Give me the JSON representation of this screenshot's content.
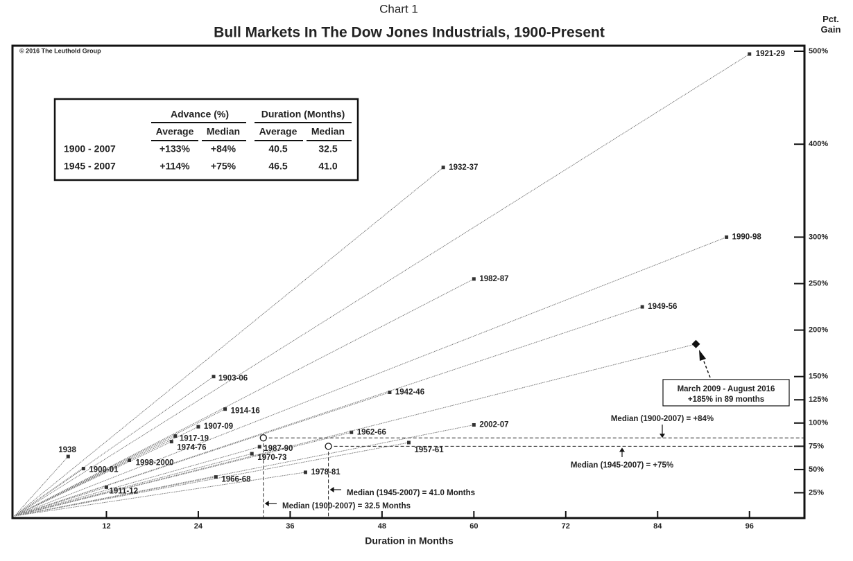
{
  "chart_data": {
    "type": "scatter",
    "subtitle": "Chart 1",
    "title": "Bull Markets In The Dow Jones Industrials, 1900-Present",
    "source": "© 2016 The Leuthold Group",
    "xlabel": "Duration in Months",
    "ylabel": "Pct. Gain",
    "xlim": [
      0,
      103
    ],
    "ylim": [
      0,
      500
    ],
    "xticks": [
      12,
      24,
      36,
      48,
      60,
      72,
      84,
      96
    ],
    "yticks": [
      {
        "value": 25,
        "label": "25%"
      },
      {
        "value": 50,
        "label": "50%"
      },
      {
        "value": 75,
        "label": "75%"
      },
      {
        "value": 100,
        "label": "100%"
      },
      {
        "value": 125,
        "label": "125%"
      },
      {
        "value": 150,
        "label": "150%"
      },
      {
        "value": 200,
        "label": "200%"
      },
      {
        "value": 250,
        "label": "250%"
      },
      {
        "value": 300,
        "label": "300%"
      },
      {
        "value": 400,
        "label": "400%"
      },
      {
        "value": 500,
        "label": "500%"
      }
    ],
    "color": "#333333",
    "labels": [
      "1921-29",
      "1932-37",
      "1990-98",
      "1982-87",
      "1949-56",
      "1903-06",
      "1942-46",
      "1914-16",
      "2002-07",
      "1907-09",
      "1962-66",
      "1917-19",
      "1974-76",
      "1957-61",
      "1987-90",
      "1970-73",
      "1938",
      "1998-2000",
      "1900-01",
      "1978-81",
      "1966-68",
      "1911-12"
    ],
    "x": [
      96,
      56,
      93,
      60,
      82,
      26,
      49,
      27.5,
      60,
      24,
      44,
      21,
      20.5,
      51.5,
      32,
      31,
      7,
      15,
      9,
      38,
      26.3,
      12
    ],
    "values": [
      497,
      375,
      300,
      255,
      225,
      150,
      133,
      115,
      98,
      96,
      90,
      86,
      80,
      79,
      74.5,
      67,
      64,
      60,
      51,
      47,
      42,
      31
    ],
    "current": {
      "x": 89,
      "y": 185,
      "label": "March 2009 - August 2016",
      "note": "+185% in 89 months"
    },
    "medians": [
      {
        "x": 32.5,
        "y": 84,
        "x_label": "Median (1900-2007) = 32.5 Months",
        "y_label": "Median (1900-2007) = +84%"
      },
      {
        "x": 41,
        "y": 75,
        "x_label": "Median (1945-2007) = 41.0 Months",
        "y_label": "Median (1945-2007) = +75%"
      }
    ],
    "summary_table": {
      "group_headers": [
        "Advance (%)",
        "Duration (Months)"
      ],
      "headers": [
        "Average",
        "Median",
        "Average",
        "Median"
      ],
      "rows": [
        [
          "1900 - 2007",
          "+133%",
          "+84%",
          "40.5",
          "32.5"
        ],
        [
          "1945 - 2007",
          "+114%",
          "+75%",
          "46.5",
          "41.0"
        ]
      ]
    }
  }
}
